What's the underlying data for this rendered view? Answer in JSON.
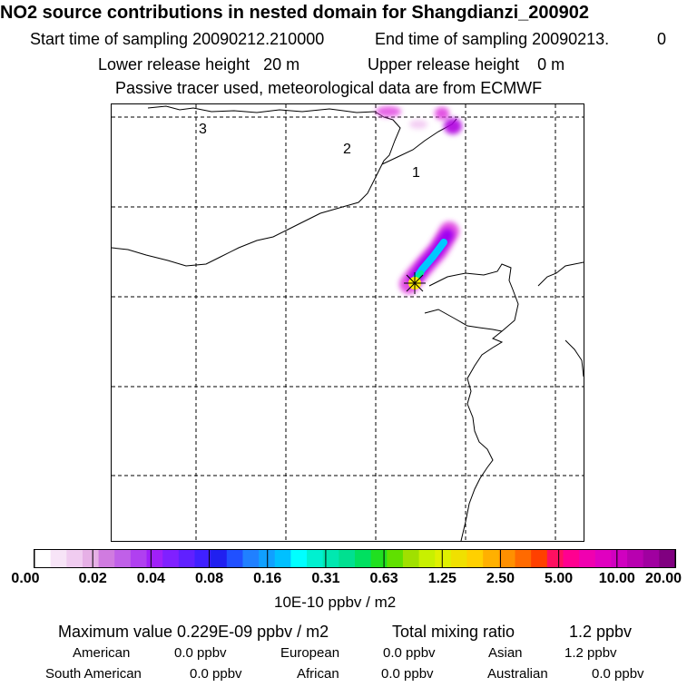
{
  "header": {
    "title": "NO2 source contributions in nested domain for Shangdianzi_200902",
    "start_label": "Start time of sampling 20090212.210000",
    "end_label": "End time of sampling 20090213.",
    "end_suffix": "0",
    "lower_release": "Lower release height   20 m",
    "upper_release": "Upper release height    0 m",
    "tracer_note": "Passive tracer used, meteorological data are from ECMWF"
  },
  "map": {
    "region_labels": [
      "3",
      "2",
      "1"
    ],
    "colors": {
      "plume_outer": "#e020e0",
      "plume_mid": "#9a00ff",
      "plume_core": "#00c8ff",
      "source_marker": "#ffee00"
    }
  },
  "colorbar": {
    "tick_labels": [
      "0.00",
      "0.02",
      "0.04",
      "0.08",
      "0.16",
      "0.31",
      "0.63",
      "1.25",
      "2.50",
      "5.00",
      "10.00",
      "20.00"
    ],
    "unit_label": "10E-10 ppbv / m2",
    "colors": [
      "#ffffff",
      "#f7e4f7",
      "#f0ccf0",
      "#e6b0e6",
      "#d07be0",
      "#c060e8",
      "#b040f0",
      "#a020f8",
      "#8020ff",
      "#6020ff",
      "#4020ff",
      "#2020f0",
      "#2050ff",
      "#2080ff",
      "#10a0ff",
      "#00c0ff",
      "#00ffff",
      "#00f0d0",
      "#00e8b0",
      "#00e090",
      "#00e060",
      "#20e020",
      "#60e000",
      "#a0e000",
      "#c8f000",
      "#e0f000",
      "#f0e000",
      "#ffd000",
      "#ffb000",
      "#ff9000",
      "#ff6a00",
      "#ff4000",
      "#ff1060",
      "#ff0090",
      "#f000b0",
      "#e000c0",
      "#d000c0",
      "#b800b0",
      "#a000a0",
      "#800080"
    ]
  },
  "stats": {
    "max_value": "Maximum value  0.229E-09 ppbv / m2",
    "total_mixing": "Total mixing ratio",
    "total_mixing_value": "1.2 ppbv",
    "regions": [
      {
        "name": "American",
        "value": "0.0 ppbv"
      },
      {
        "name": "European",
        "value": "0.0 ppbv"
      },
      {
        "name": "Asian",
        "value": "1.2 ppbv"
      },
      {
        "name": "South American",
        "value": "0.0 ppbv"
      },
      {
        "name": "African",
        "value": "0.0 ppbv"
      },
      {
        "name": "Australian",
        "value": "0.0 ppbv"
      }
    ]
  }
}
